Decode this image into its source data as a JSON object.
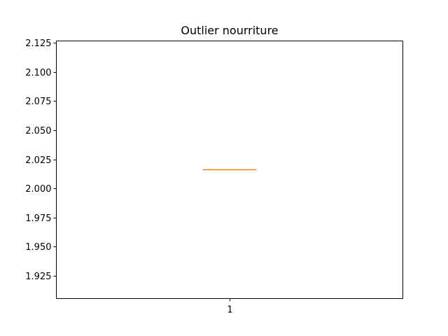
{
  "chart_data": {
    "type": "box",
    "title": "Outlier nourriture",
    "xlabel": "",
    "ylabel": "",
    "categories": [
      "1"
    ],
    "boxes": [
      {
        "category": "1",
        "min": 2.016,
        "q1": 2.016,
        "median": 2.016,
        "q3": 2.016,
        "max": 2.016
      }
    ],
    "ylim": [
      1.9055,
      2.1265
    ],
    "yticks": [
      1.925,
      1.95,
      1.975,
      2.0,
      2.025,
      2.05,
      2.075,
      2.1,
      2.125
    ],
    "ytick_labels": [
      "1.925",
      "1.950",
      "1.975",
      "2.000",
      "2.025",
      "2.050",
      "2.075",
      "2.100",
      "2.125"
    ],
    "grid": false,
    "colors": {
      "box": "#000000",
      "median": "#ff7f0e",
      "axes": "#000000",
      "background": "#ffffff"
    }
  }
}
